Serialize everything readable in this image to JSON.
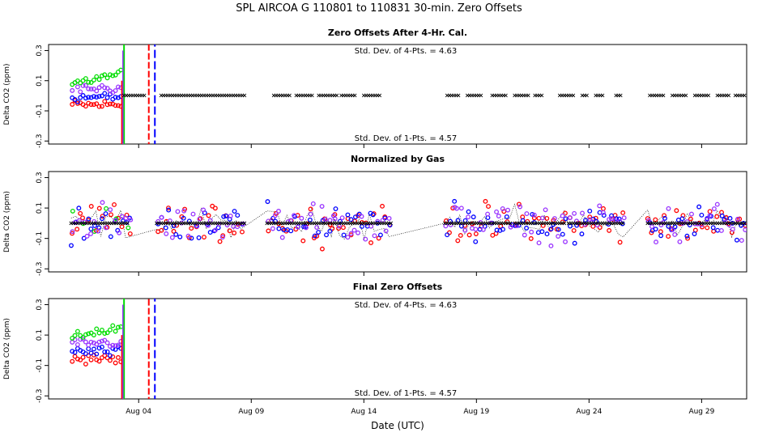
{
  "header": {
    "title": "SPL    AIRCOA G    110801 to 110831    30-min. Zero Offsets"
  },
  "chart_data": [
    {
      "type": "scatter",
      "panel": "top",
      "title": "Zero Offsets After 4-Hr. Cal.",
      "ylabel": "Delta CO2 (ppm)",
      "ylim": [
        -0.32,
        0.34
      ],
      "yticks": [
        -0.3,
        -0.1,
        0.1,
        0.3
      ],
      "ytick_labels": [
        "-0.3",
        "-0.1",
        "0.1",
        "0.3"
      ],
      "annotations": [
        "Std. Dev. of 4-Pts. =  4.63",
        "Std. Dev. of 1-Pts. =  4.57"
      ],
      "xticks": [],
      "series_colors": {
        "gas1": "#ff0000",
        "gas2": "#0000ff",
        "gas3": "#00dd00",
        "gas4": "#9933ff",
        "mean": "#000000"
      }
    },
    {
      "type": "scatter",
      "panel": "middle",
      "title": "Normalized by Gas",
      "ylabel": "Delta CO2 (ppm)",
      "ylim": [
        -0.32,
        0.34
      ],
      "yticks": [
        -0.3,
        -0.1,
        0.1,
        0.3
      ],
      "ytick_labels": [
        "-0.3",
        "-0.1",
        "0.1",
        "0.3"
      ],
      "xticks": []
    },
    {
      "type": "scatter",
      "panel": "bottom",
      "title": "Final Zero Offsets",
      "ylabel": "Delta CO2 (ppm)",
      "ylim": [
        -0.32,
        0.34
      ],
      "yticks": [
        -0.3,
        -0.1,
        0.1,
        0.3
      ],
      "ytick_labels": [
        "-0.3",
        "-0.1",
        "0.1",
        "0.3"
      ],
      "annotations": [
        "Std. Dev. of 4-Pts. =  4.63",
        "Std. Dev. of 1-Pts. =  4.57"
      ],
      "xlabel": "Date (UTC)",
      "xlim": [
        0,
        31
      ],
      "xticks": [
        4,
        9,
        14,
        19,
        24,
        29
      ],
      "xtick_labels": [
        "Aug 04",
        "Aug 09",
        "Aug 14",
        "Aug 19",
        "Aug 24",
        "Aug 29"
      ]
    }
  ]
}
